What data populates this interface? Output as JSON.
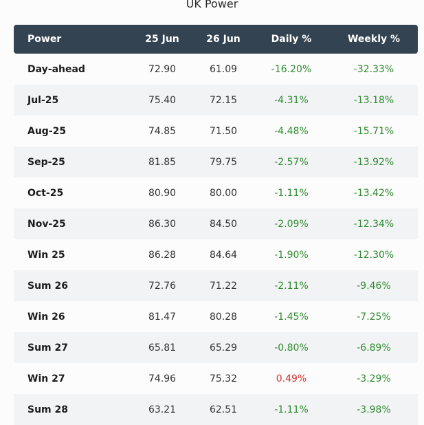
{
  "title": "UK Power",
  "colors": {
    "header_bg": "#344352",
    "negative": "#2e8b2e",
    "positive": "#d0312d",
    "alt_row": "#f2f3f5"
  },
  "columns": {
    "name": "Power",
    "d1": "25 Jun",
    "d2": "26 Jun",
    "daily": "Daily %",
    "weekly": "Weekly %"
  },
  "rows": [
    {
      "name": "Day-ahead",
      "d1": "72.90",
      "d2": "61.09",
      "daily": "-16.20%",
      "weekly": "-32.33%"
    },
    {
      "name": "Jul-25",
      "d1": "75.40",
      "d2": "72.15",
      "daily": "-4.31%",
      "weekly": "-13.18%"
    },
    {
      "name": "Aug-25",
      "d1": "74.85",
      "d2": "71.50",
      "daily": "-4.48%",
      "weekly": "-15.71%"
    },
    {
      "name": "Sep-25",
      "d1": "81.85",
      "d2": "79.75",
      "daily": "-2.57%",
      "weekly": "-13.92%"
    },
    {
      "name": "Oct-25",
      "d1": "80.90",
      "d2": "80.00",
      "daily": "-1.11%",
      "weekly": "-13.42%"
    },
    {
      "name": "Nov-25",
      "d1": "86.30",
      "d2": "84.50",
      "daily": "-2.09%",
      "weekly": "-12.34%"
    },
    {
      "name": "Win 25",
      "d1": "86.28",
      "d2": "84.64",
      "daily": "-1.90%",
      "weekly": "-12.30%"
    },
    {
      "name": "Sum 26",
      "d1": "72.76",
      "d2": "71.22",
      "daily": "-2.11%",
      "weekly": "-9.46%"
    },
    {
      "name": "Win 26",
      "d1": "81.47",
      "d2": "80.28",
      "daily": "-1.45%",
      "weekly": "-7.25%"
    },
    {
      "name": "Sum 27",
      "d1": "65.81",
      "d2": "65.29",
      "daily": "-0.80%",
      "weekly": "-6.89%"
    },
    {
      "name": "Win 27",
      "d1": "74.96",
      "d2": "75.32",
      "daily": "0.49%",
      "weekly": "-3.29%"
    },
    {
      "name": "Sum 28",
      "d1": "63.21",
      "d2": "62.51",
      "daily": "-1.11%",
      "weekly": "-3.98%"
    }
  ]
}
